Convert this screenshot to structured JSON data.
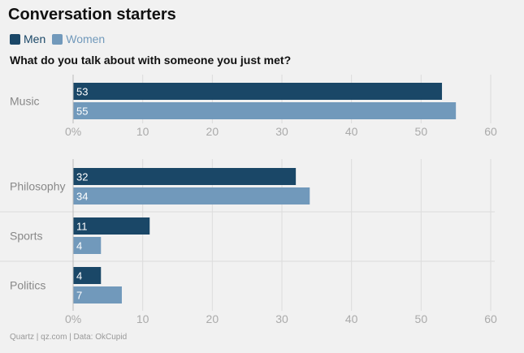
{
  "title": "Conversation starters",
  "subtitle": "What do you talk about with someone you just met?",
  "source": "Quartz | qz.com | Data: OkCupid",
  "legend": [
    {
      "name": "Men",
      "color": "#1a4767"
    },
    {
      "name": "Women",
      "color": "#7199bb"
    }
  ],
  "chart_data": [
    {
      "type": "bar",
      "orientation": "horizontal",
      "categories": [
        "Music"
      ],
      "series": [
        {
          "name": "Men",
          "values": [
            53
          ],
          "color": "#1a4767"
        },
        {
          "name": "Women",
          "values": [
            55
          ],
          "color": "#7199bb"
        }
      ],
      "xlim": [
        0,
        60
      ],
      "xticks": [
        "0%",
        "10",
        "20",
        "30",
        "40",
        "50",
        "60"
      ]
    },
    {
      "type": "bar",
      "orientation": "horizontal",
      "categories": [
        "Philosophy",
        "Sports",
        "Politics"
      ],
      "series": [
        {
          "name": "Men",
          "values": [
            32,
            11,
            4
          ],
          "color": "#1a4767"
        },
        {
          "name": "Women",
          "values": [
            34,
            4,
            7
          ],
          "color": "#7199bb"
        }
      ],
      "xlim": [
        0,
        60
      ],
      "xticks": [
        "0%",
        "10",
        "20",
        "30",
        "40",
        "50",
        "60"
      ]
    }
  ]
}
